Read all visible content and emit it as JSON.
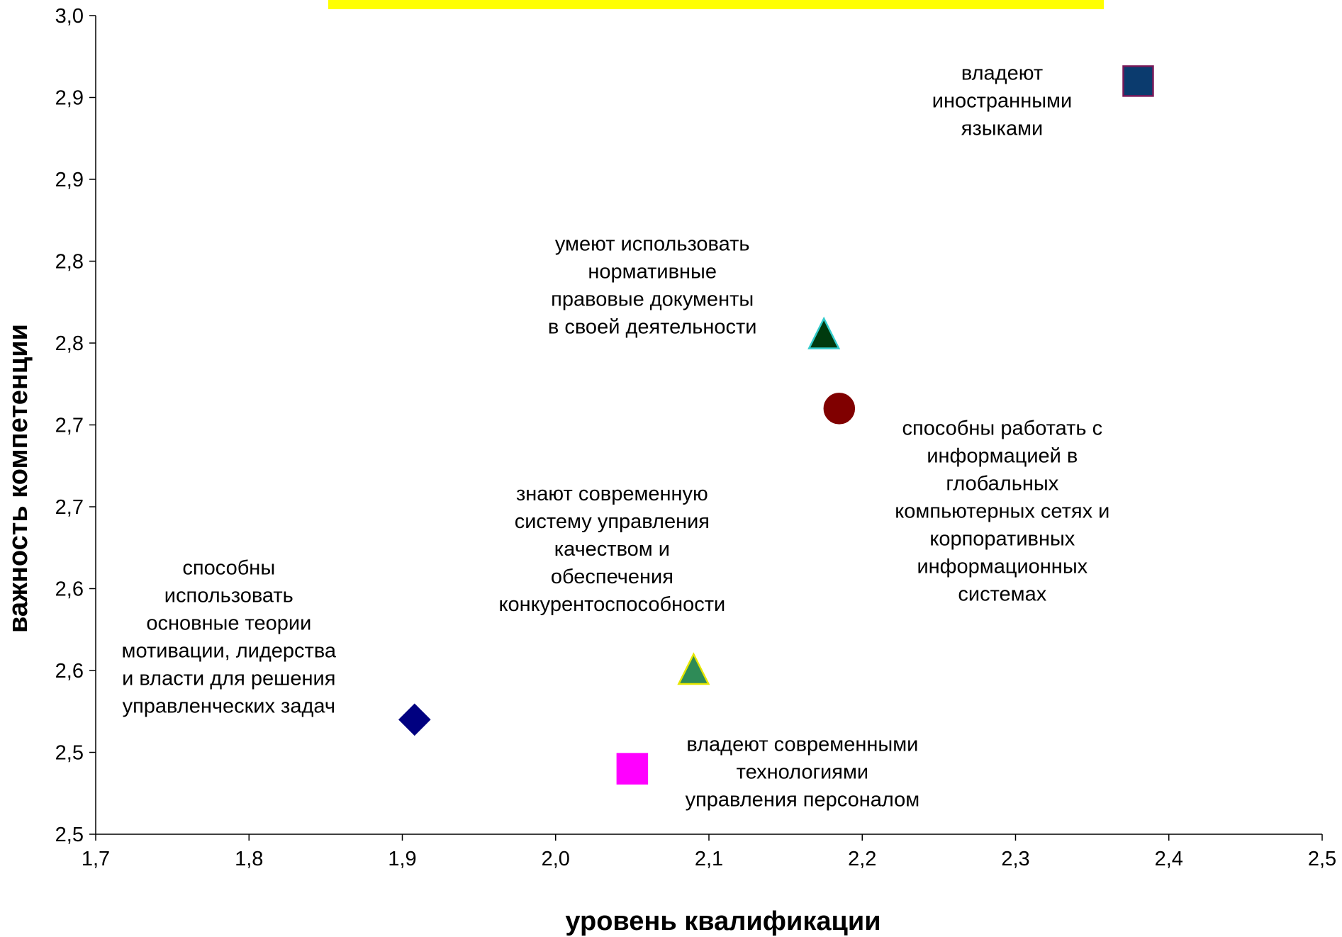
{
  "chart_data": {
    "type": "scatter",
    "title": "",
    "xlabel": "уровень квалификации",
    "ylabel": "важность компетенции",
    "xlim": [
      1.7,
      2.5
    ],
    "ylim": [
      2.5,
      3.0
    ],
    "grid": false,
    "x_ticks": [
      "1,7",
      "1,8",
      "1,9",
      "2,0",
      "2,1",
      "2,2",
      "2,3",
      "2,4",
      "2,5"
    ],
    "y_ticks": [
      "2,5",
      "2,5",
      "2,6",
      "2,6",
      "2,7",
      "2,7",
      "2,8",
      "2,8",
      "2,9",
      "2,9",
      "3,0"
    ],
    "banner_color": "#ffff00",
    "points": [
      {
        "x": 2.38,
        "y": 2.96,
        "marker": "square",
        "color": "#0b3b6e",
        "edge": "#7a1a5a",
        "label": [
          "владеют",
          "иностранными",
          "языками"
        ],
        "label_anchor": "left"
      },
      {
        "x": 2.175,
        "y": 2.805,
        "marker": "triangle",
        "color": "#003a0e",
        "edge": "#33cccc",
        "label": [
          "умеют использовать",
          "нормативные",
          "правовые документы",
          "в своей деятельности"
        ],
        "label_anchor": "left"
      },
      {
        "x": 2.185,
        "y": 2.76,
        "marker": "circle",
        "color": "#800000",
        "edge": "#800000",
        "label": [
          "способны работать с",
          "информацией в",
          "глобальных",
          "компьютерных сетях и",
          "корпоративных",
          "информационных",
          "системах"
        ],
        "label_anchor": "right"
      },
      {
        "x": 2.09,
        "y": 2.6,
        "marker": "triangle",
        "color": "#2e8b57",
        "edge": "#e6e600",
        "label": [
          "знают современную",
          "систему управления",
          "качеством и",
          "обеспечения",
          "конкурентоспособности"
        ],
        "label_anchor": "above"
      },
      {
        "x": 1.908,
        "y": 2.57,
        "marker": "diamond",
        "color": "#000080",
        "edge": "#000080",
        "label": [
          "способны",
          "использовать",
          "основные теории",
          "мотивации, лидерства",
          "и власти для решения",
          "управленческих задач"
        ],
        "label_anchor": "left"
      },
      {
        "x": 2.05,
        "y": 2.54,
        "marker": "square",
        "color": "#ff00ff",
        "edge": "#ff00ff",
        "label": [
          "владеют современными",
          "технологиями",
          "управления персоналом"
        ],
        "label_anchor": "right"
      }
    ]
  }
}
